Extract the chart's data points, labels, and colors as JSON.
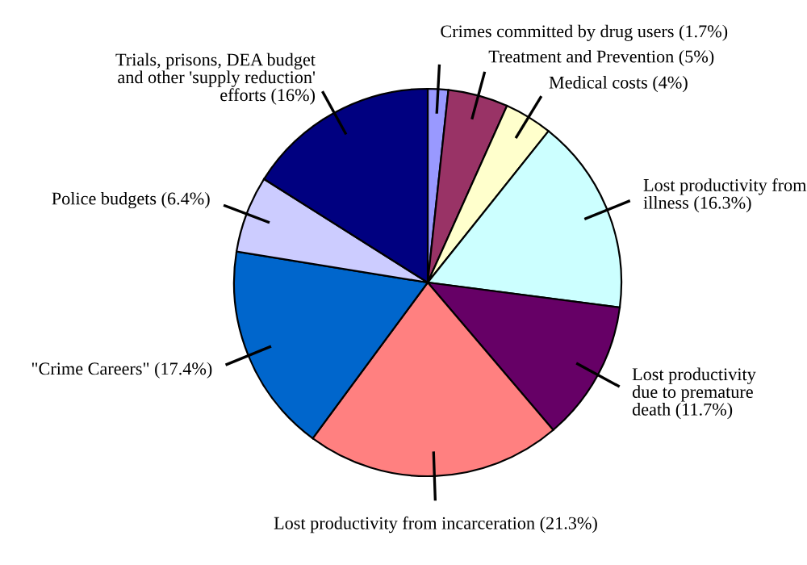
{
  "chart_data": {
    "type": "pie",
    "categories": [
      "Crimes committed by drug users (1.7%)",
      "Treatment and Prevention (5%)",
      "Medical costs (4%)",
      "Lost productivity from\nillness (16.3%)",
      "Lost productivity\ndue to premature\ndeath (11.7%)",
      "Lost productivity from incarceration (21.3%)",
      "\"Crime Careers\" (17.4%)",
      "Police budgets (6.4%)",
      "Trials, prisons, DEA budget\nand other 'supply reduction'\nefforts (16%)"
    ],
    "values": [
      1.7,
      5,
      4,
      16.3,
      11.7,
      21.3,
      17.4,
      6.4,
      16
    ],
    "colors": [
      "#9999ff",
      "#993366",
      "#ffffcc",
      "#ccffff",
      "#660066",
      "#ff8080",
      "#0066cc",
      "#ccccff",
      "#000080"
    ]
  }
}
